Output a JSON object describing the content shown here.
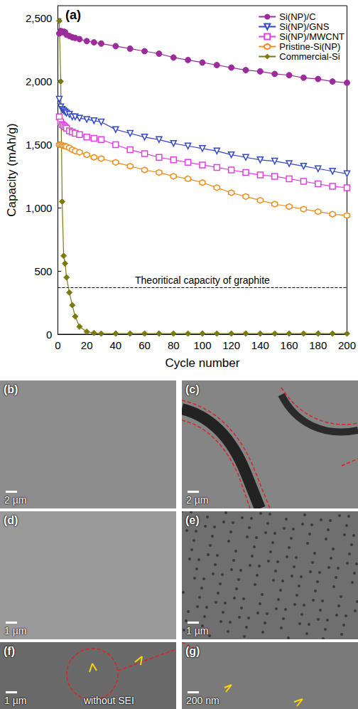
{
  "chart_data": {
    "type": "line",
    "panel": "(a)",
    "x_label": "Cycle number",
    "y_label": "Capacity (mAh/g)",
    "x": [
      1,
      2,
      3,
      4,
      5,
      6,
      8,
      10,
      12,
      15,
      20,
      25,
      30,
      40,
      50,
      60,
      70,
      80,
      90,
      100,
      110,
      120,
      130,
      140,
      150,
      160,
      170,
      180,
      190,
      200
    ],
    "xlim": [
      0,
      200
    ],
    "xticks": [
      0,
      20,
      40,
      60,
      80,
      100,
      120,
      140,
      160,
      180,
      200
    ],
    "ylim": [
      0,
      2600
    ],
    "yticks": [
      0,
      500,
      1000,
      1500,
      2000,
      2500
    ],
    "grid": false,
    "legend": "upper right",
    "series": [
      {
        "name": "Si(NP)/C",
        "color": "#9c2b9c",
        "marker": "circle",
        "values": [
          2380,
          2400,
          2390,
          2395,
          2390,
          2370,
          2360,
          2350,
          2345,
          2335,
          2320,
          2310,
          2300,
          2280,
          2260,
          2240,
          2220,
          2190,
          2170,
          2150,
          2130,
          2110,
          2090,
          2080,
          2060,
          2050,
          2030,
          2020,
          2000,
          1990
        ]
      },
      {
        "name": "Si(NP)/GNS",
        "color": "#3347c9",
        "marker": "triangle_down_open",
        "values": [
          1860,
          1800,
          1780,
          1770,
          1760,
          1750,
          1740,
          1720,
          1720,
          1710,
          1700,
          1690,
          1680,
          1620,
          1590,
          1560,
          1540,
          1510,
          1490,
          1470,
          1450,
          1420,
          1400,
          1380,
          1370,
          1350,
          1330,
          1310,
          1290,
          1270
        ]
      },
      {
        "name": "Si(NP)/MWCNT",
        "color": "#e040e0",
        "marker": "square_open",
        "values": [
          1720,
          1680,
          1660,
          1650,
          1640,
          1630,
          1610,
          1600,
          1590,
          1580,
          1560,
          1550,
          1540,
          1500,
          1460,
          1430,
          1400,
          1380,
          1360,
          1340,
          1320,
          1300,
          1280,
          1260,
          1250,
          1230,
          1210,
          1190,
          1170,
          1160
        ]
      },
      {
        "name": "Pristine-Si(NP)",
        "color": "#f28c1a",
        "marker": "hexagon_open",
        "values": [
          1500,
          1500,
          1495,
          1490,
          1490,
          1485,
          1475,
          1460,
          1450,
          1440,
          1420,
          1400,
          1390,
          1360,
          1330,
          1300,
          1280,
          1250,
          1230,
          1200,
          1160,
          1120,
          1090,
          1060,
          1030,
          1010,
          990,
          970,
          950,
          940
        ]
      },
      {
        "name": "Commercial-Si",
        "color": "#7a7a10",
        "marker": "diamond",
        "values": [
          2480,
          2000,
          1050,
          620,
          560,
          450,
          330,
          230,
          140,
          60,
          20,
          10,
          5,
          5,
          5,
          5,
          5,
          5,
          5,
          5,
          5,
          5,
          5,
          5,
          5,
          5,
          5,
          5,
          5,
          5
        ]
      }
    ],
    "annotations": [
      {
        "text": "Theoritical capacity of graphite",
        "value": 372,
        "line_style": "dashed"
      }
    ]
  },
  "panels": [
    {
      "letter": "(b)",
      "scale": "2 µm"
    },
    {
      "letter": "(c)",
      "scale": "2 µm"
    },
    {
      "letter": "(d)",
      "scale": "1 µm"
    },
    {
      "letter": "(e)",
      "scale": "1 µm"
    },
    {
      "letter": "(f)",
      "scale": "1 µm",
      "note": "without SEI"
    },
    {
      "letter": "(g)",
      "scale": "200 nm"
    }
  ]
}
